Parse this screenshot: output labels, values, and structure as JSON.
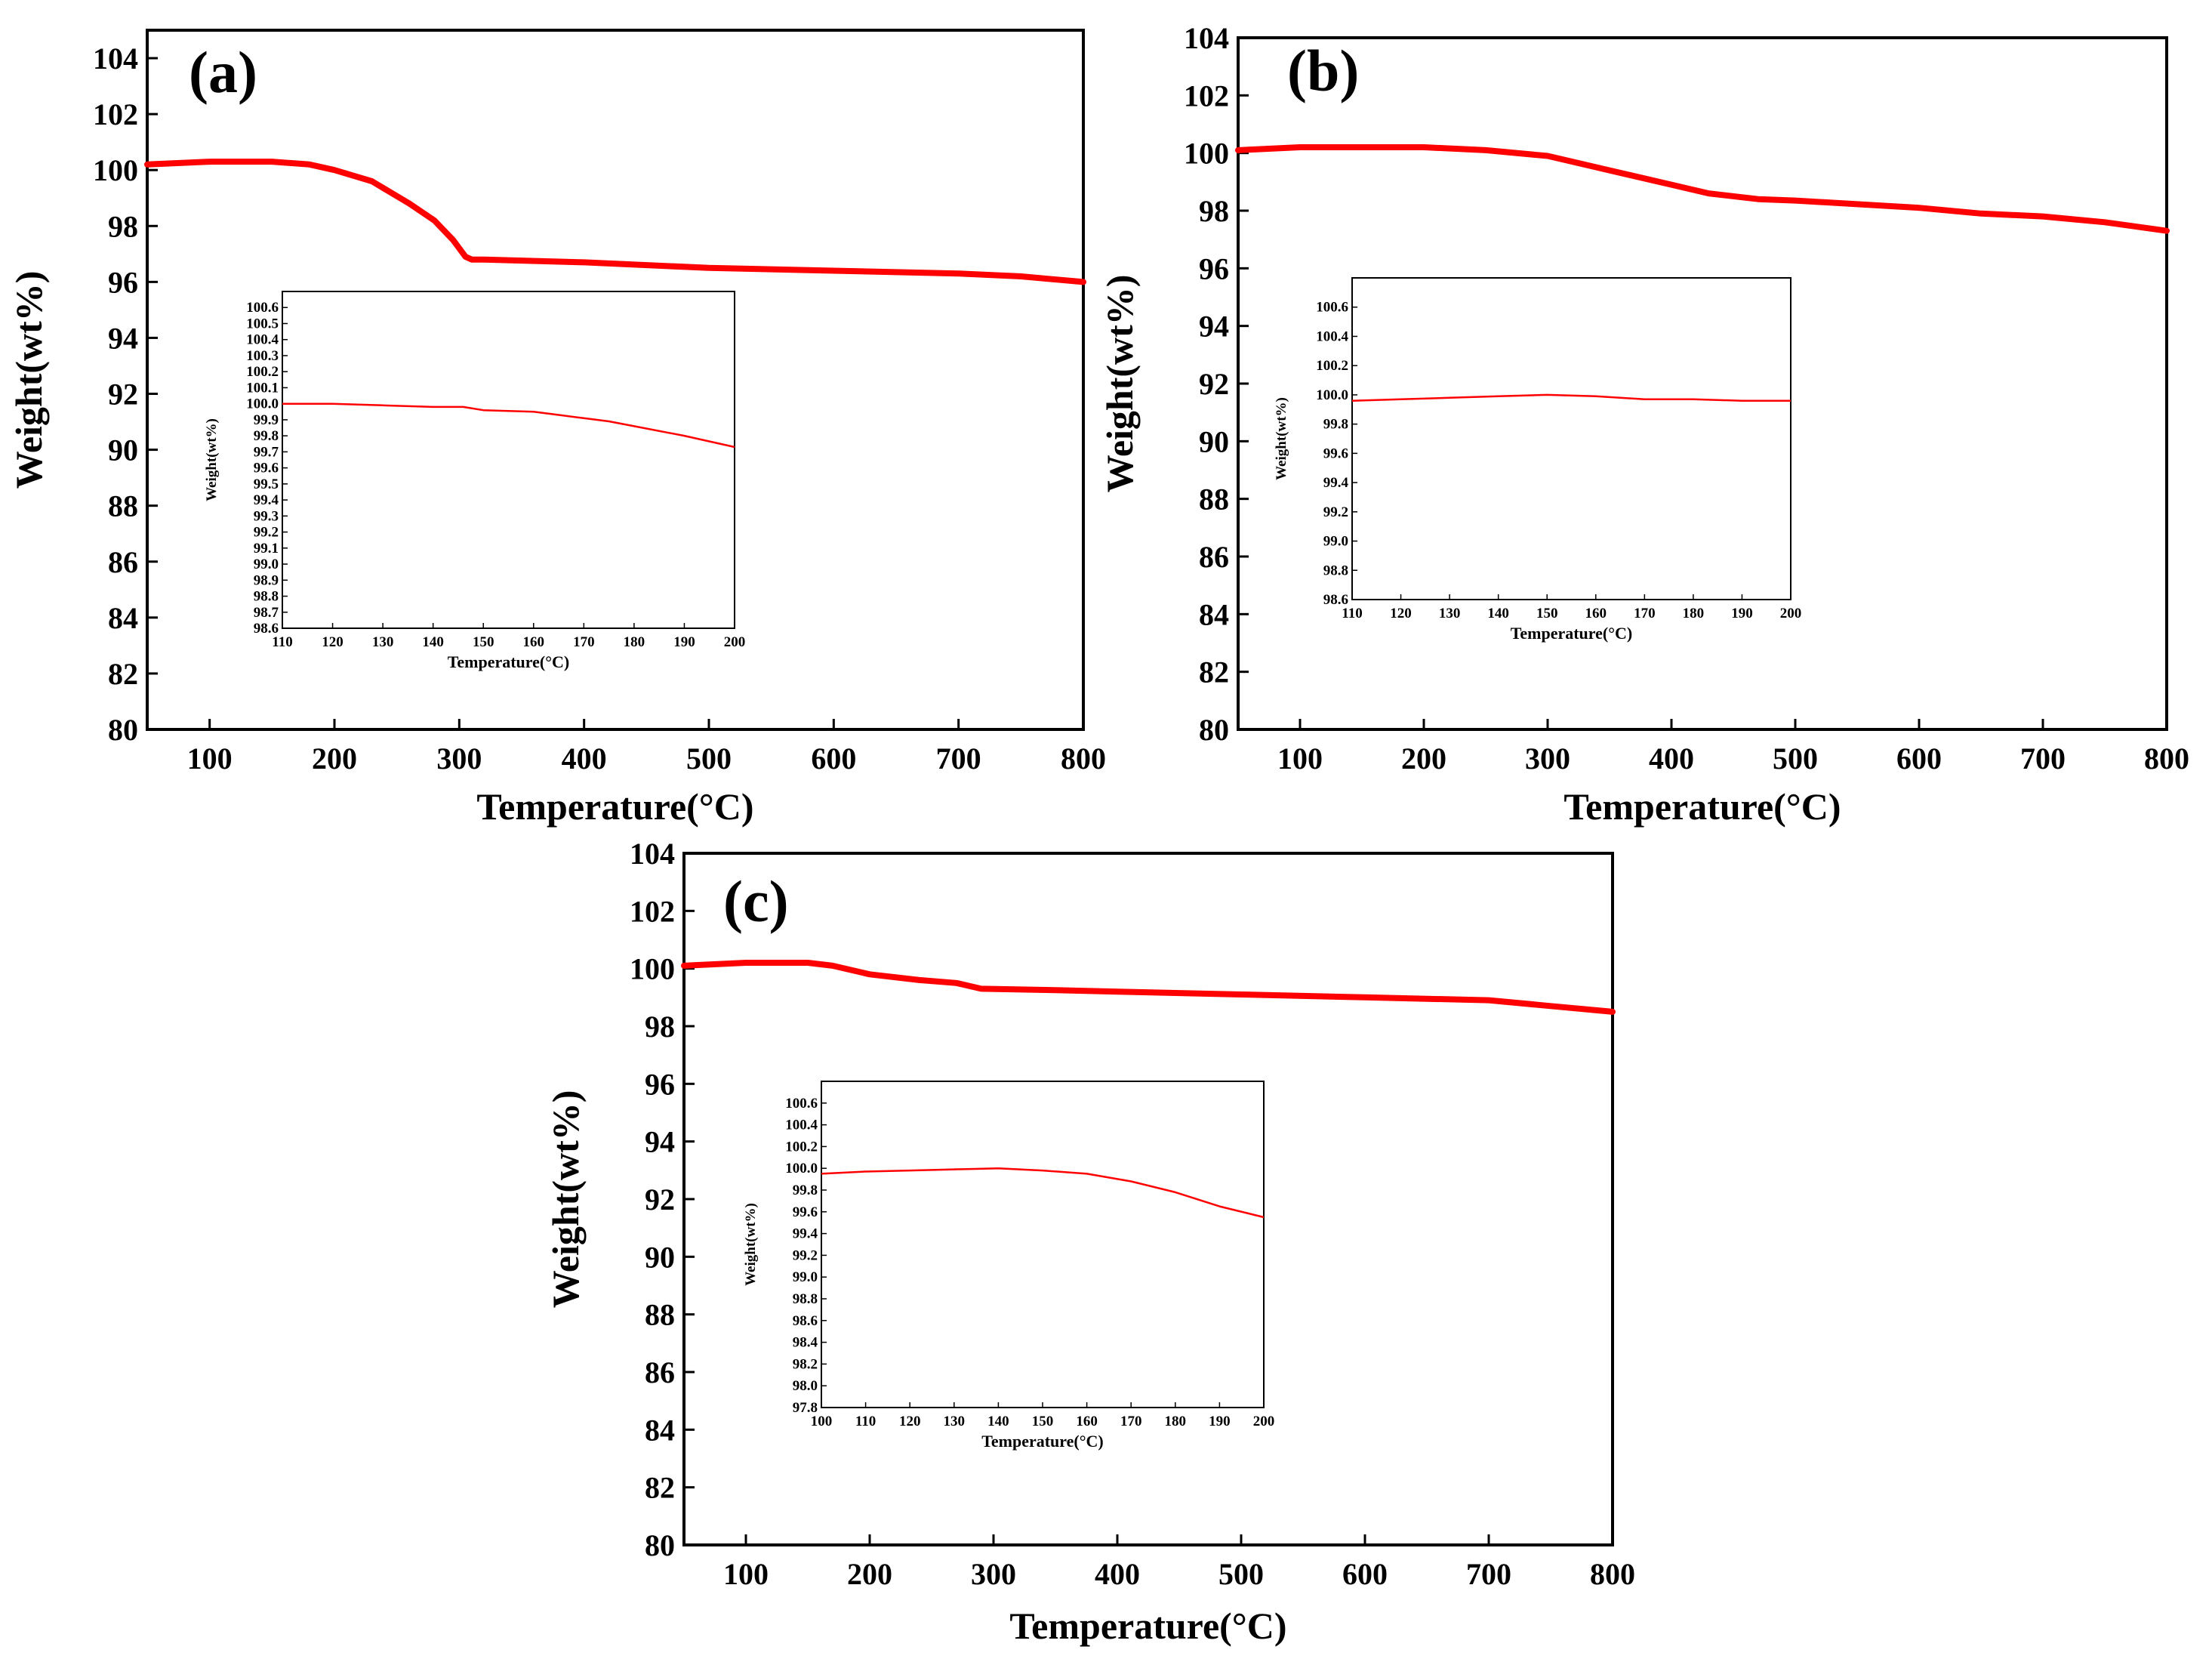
{
  "chart_data": [
    {
      "type": "line",
      "panel_label": "(a)",
      "xlabel": "Temperature(°C)",
      "ylabel": "Weight(wt%)",
      "xlim": [
        50,
        800
      ],
      "ylim": [
        80,
        105
      ],
      "xticks": [
        100,
        200,
        300,
        400,
        500,
        600,
        700,
        800
      ],
      "yticks": [
        80,
        82,
        84,
        86,
        88,
        90,
        92,
        94,
        96,
        98,
        100,
        102,
        104
      ],
      "line_color": "#ff0000",
      "series": [
        {
          "name": "Weight",
          "x": [
            50,
            100,
            150,
            180,
            200,
            230,
            260,
            280,
            295,
            305,
            310,
            320,
            400,
            500,
            600,
            700,
            750,
            800
          ],
          "y": [
            100.2,
            100.3,
            100.3,
            100.2,
            100.0,
            99.6,
            98.8,
            98.2,
            97.5,
            96.9,
            96.8,
            96.8,
            96.7,
            96.5,
            96.4,
            96.3,
            96.2,
            96.0
          ]
        }
      ],
      "inset": {
        "xlabel": "Temperature(°C)",
        "ylabel": "Weight(wt%)",
        "xlim": [
          110,
          200
        ],
        "ylim": [
          98.6,
          100.7
        ],
        "xticks": [
          110,
          120,
          130,
          140,
          150,
          160,
          170,
          180,
          190,
          200
        ],
        "yticks": [
          98.6,
          98.7,
          98.8,
          98.9,
          99.0,
          99.1,
          99.2,
          99.3,
          99.4,
          99.5,
          99.6,
          99.7,
          99.8,
          99.9,
          100.0,
          100.1,
          100.2,
          100.3,
          100.4,
          100.5,
          100.6
        ],
        "ytick_labels": [
          "98.6",
          "98.7",
          "98.8",
          "98.9",
          "99.0",
          "99.1",
          "99.2",
          "99.3",
          "99.4",
          "99.5",
          "99.6",
          "99.7",
          "99.8",
          "99.9",
          "100.0",
          "100.1",
          "100.2",
          "100.3",
          "100.4",
          "100.5",
          "100.6"
        ],
        "series": [
          {
            "name": "Weight",
            "x": [
              110,
              115,
              120,
              130,
              140,
              146,
              150,
              160,
              165,
              170,
              175,
              180,
              190,
              200
            ],
            "y": [
              100.0,
              100.0,
              100.0,
              99.99,
              99.98,
              99.98,
              99.96,
              99.95,
              99.93,
              99.91,
              99.89,
              99.86,
              99.8,
              99.73
            ]
          }
        ]
      }
    },
    {
      "type": "line",
      "panel_label": "(b)",
      "xlabel": "Temperature(°C)",
      "ylabel": "Weight(wt%)",
      "xlim": [
        50,
        800
      ],
      "ylim": [
        80,
        104
      ],
      "xticks": [
        100,
        200,
        300,
        400,
        500,
        600,
        700,
        800
      ],
      "yticks": [
        80,
        82,
        84,
        86,
        88,
        90,
        92,
        94,
        96,
        98,
        100,
        102,
        104
      ],
      "line_color": "#ff0000",
      "series": [
        {
          "name": "Weight",
          "x": [
            50,
            100,
            150,
            200,
            250,
            300,
            350,
            400,
            430,
            470,
            500,
            600,
            650,
            700,
            750,
            800
          ],
          "y": [
            100.1,
            100.2,
            100.2,
            100.2,
            100.1,
            99.9,
            99.4,
            98.9,
            98.6,
            98.4,
            98.35,
            98.1,
            97.9,
            97.8,
            97.6,
            97.3
          ]
        }
      ],
      "inset": {
        "xlabel": "Temperature(°C)",
        "ylabel": "Weight(wt%)",
        "xlim": [
          110,
          200
        ],
        "ylim": [
          98.6,
          100.8
        ],
        "xticks": [
          110,
          120,
          130,
          140,
          150,
          160,
          170,
          180,
          190,
          200
        ],
        "yticks": [
          98.6,
          98.8,
          99.0,
          99.2,
          99.4,
          99.6,
          99.8,
          100.0,
          100.2,
          100.4,
          100.6
        ],
        "ytick_labels": [
          "98.6",
          "98.8",
          "99.0",
          "99.2",
          "99.4",
          "99.6",
          "99.8",
          "100.0",
          "100.2",
          "100.4",
          "100.6"
        ],
        "series": [
          {
            "name": "Weight",
            "x": [
              110,
              120,
              130,
              140,
              150,
              160,
              170,
              180,
              190,
              200
            ],
            "y": [
              99.96,
              99.97,
              99.98,
              99.99,
              100.0,
              99.99,
              99.97,
              99.97,
              99.96,
              99.96
            ]
          }
        ]
      }
    },
    {
      "type": "line",
      "panel_label": "(c)",
      "xlabel": "Temperature(°C)",
      "ylabel": "Weight(wt%)",
      "xlim": [
        50,
        800
      ],
      "ylim": [
        80,
        104
      ],
      "xticks": [
        100,
        200,
        300,
        400,
        500,
        600,
        700,
        800
      ],
      "yticks": [
        80,
        82,
        84,
        86,
        88,
        90,
        92,
        94,
        96,
        98,
        100,
        102,
        104
      ],
      "line_color": "#ff0000",
      "series": [
        {
          "name": "Weight",
          "x": [
            50,
            100,
            150,
            170,
            200,
            240,
            270,
            290,
            350,
            400,
            500,
            600,
            700,
            750,
            800
          ],
          "y": [
            100.1,
            100.2,
            100.2,
            100.1,
            99.8,
            99.6,
            99.5,
            99.3,
            99.25,
            99.2,
            99.1,
            99.0,
            98.9,
            98.7,
            98.5
          ]
        }
      ],
      "inset": {
        "xlabel": "Temperature(°C)",
        "ylabel": "Weight(wt%)",
        "xlim": [
          100,
          200
        ],
        "ylim": [
          97.8,
          100.8
        ],
        "xticks": [
          100,
          110,
          120,
          130,
          140,
          150,
          160,
          170,
          180,
          190,
          200
        ],
        "yticks": [
          97.8,
          98.0,
          98.2,
          98.4,
          98.6,
          98.8,
          99.0,
          99.2,
          99.4,
          99.6,
          99.8,
          100.0,
          100.2,
          100.4,
          100.6
        ],
        "ytick_labels": [
          "97.8",
          "98.0",
          "98.2",
          "98.4",
          "98.6",
          "98.8",
          "99.0",
          "99.2",
          "99.4",
          "99.6",
          "99.8",
          "100.0",
          "100.2",
          "100.4",
          "100.6"
        ],
        "series": [
          {
            "name": "Weight",
            "x": [
              100,
              110,
              120,
              130,
              140,
              150,
              160,
              170,
              180,
              190,
              200
            ],
            "y": [
              99.95,
              99.97,
              99.98,
              99.99,
              100.0,
              99.98,
              99.95,
              99.88,
              99.78,
              99.65,
              99.55
            ]
          }
        ]
      }
    }
  ]
}
